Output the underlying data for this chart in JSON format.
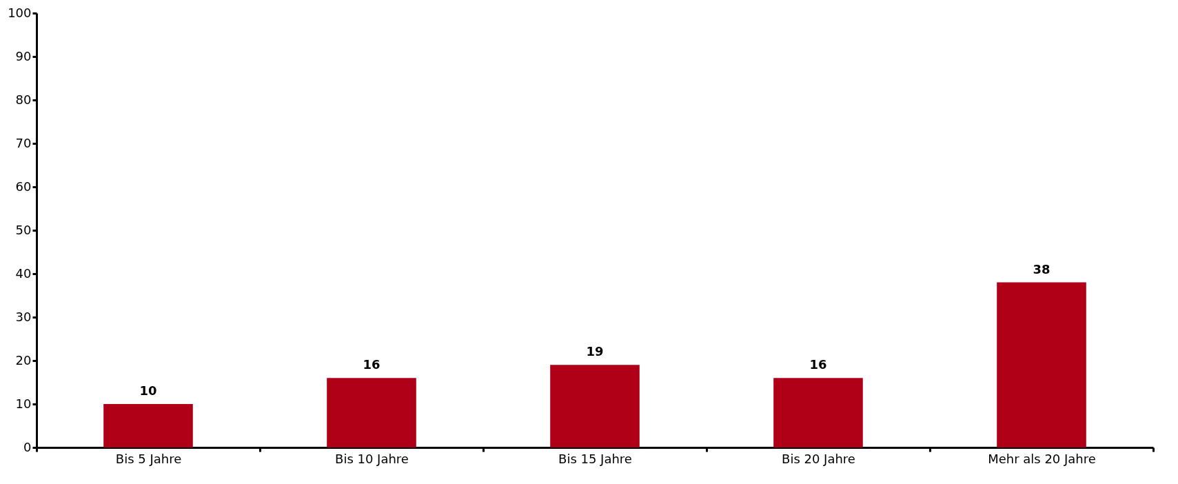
{
  "chart_data": {
    "type": "bar",
    "categories": [
      "Bis 5 Jahre",
      "Bis 10 Jahre",
      "Bis 15 Jahre",
      "Bis 20 Jahre",
      "Mehr als 20 Jahre"
    ],
    "values": [
      10,
      16,
      19,
      16,
      38
    ],
    "color": "#b00018",
    "ylim": [
      0,
      100
    ],
    "yticks": [
      0,
      10,
      20,
      30,
      40,
      50,
      60,
      70,
      80,
      90,
      100
    ],
    "data_labels": true,
    "grid": false
  }
}
